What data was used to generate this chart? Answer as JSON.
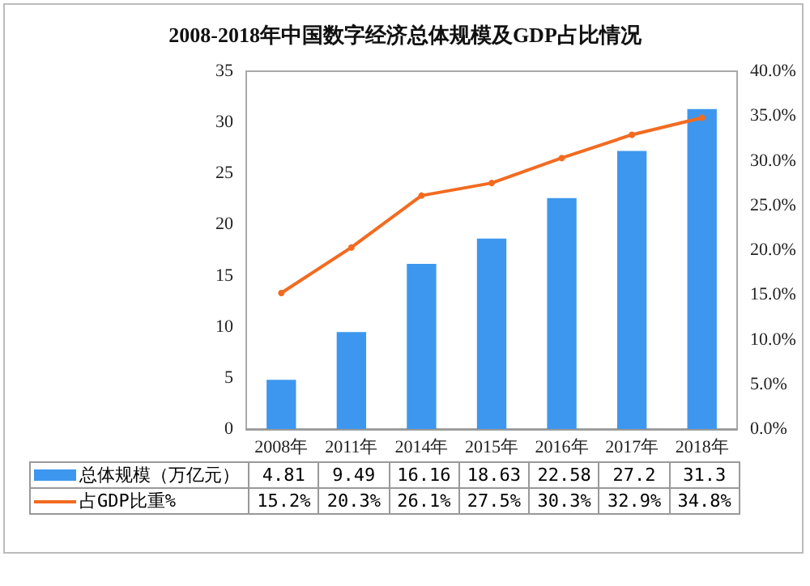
{
  "chart_data": {
    "type": "bar",
    "title": "2008-2018年中国数字经济总体规模及GDP占比情况",
    "categories": [
      "2008年",
      "2011年",
      "2014年",
      "2015年",
      "2016年",
      "2017年",
      "2018年"
    ],
    "series": [
      {
        "name": "总体规模（万亿元）",
        "color": "#3d97ee",
        "values": [
          4.81,
          9.49,
          16.16,
          18.63,
          22.58,
          27.2,
          31.3
        ],
        "value_labels": [
          "4.81",
          "9.49",
          "16.16",
          "18.63",
          "22.58",
          "27.2",
          "31.3"
        ]
      },
      {
        "name": "占GDP比重%",
        "type": "line",
        "axis": "y2",
        "color": "#f26b21",
        "marker": "circle",
        "values": [
          15.2,
          20.3,
          26.1,
          27.5,
          30.3,
          32.9,
          34.8
        ],
        "value_labels": [
          "15.2%",
          "20.3%",
          "26.1%",
          "27.5%",
          "30.3%",
          "32.9%",
          "34.8%"
        ]
      }
    ],
    "ylim": [
      0,
      35
    ],
    "yticks": [
      0,
      5,
      10,
      15,
      20,
      25,
      30,
      35
    ],
    "y2lim": [
      0,
      40
    ],
    "y2ticks": [
      {
        "value": 0,
        "label": "0.0%"
      },
      {
        "value": 5,
        "label": "5.0%"
      },
      {
        "value": 10,
        "label": "10.0%"
      },
      {
        "value": 15,
        "label": "15.0%"
      },
      {
        "value": 20,
        "label": "20.0%"
      },
      {
        "value": 25,
        "label": "25.0%"
      },
      {
        "value": 30,
        "label": "30.0%"
      },
      {
        "value": 35,
        "label": "35.0%"
      },
      {
        "value": 40,
        "label": "40.0%"
      }
    ],
    "legend": "bottom",
    "grid": false
  }
}
